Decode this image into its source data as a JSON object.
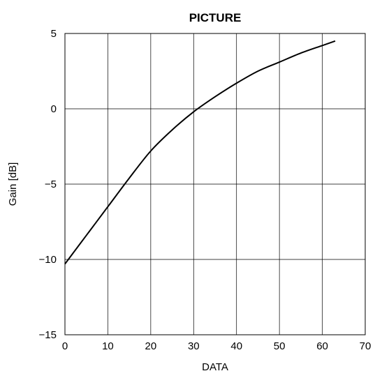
{
  "chart_data": {
    "type": "line",
    "title": "PICTURE",
    "xlabel": "DATA",
    "ylabel": "Gain [dB]",
    "xlim": [
      0,
      70
    ],
    "ylim": [
      -15,
      5
    ],
    "xticks": [
      0,
      10,
      20,
      30,
      40,
      50,
      60,
      70
    ],
    "yticks": [
      5,
      0,
      -5,
      -10,
      -15
    ],
    "ytick_labels": [
      "5",
      "0",
      "−5",
      "−10",
      "−15"
    ],
    "grid": true,
    "series": [
      {
        "color": "#000000",
        "x": [
          0,
          5,
          10,
          15,
          20,
          25,
          30,
          35,
          40,
          45,
          50,
          55,
          60,
          63
        ],
        "y": [
          -10.3,
          -8.4,
          -6.5,
          -4.6,
          -2.8,
          -1.4,
          -0.2,
          0.8,
          1.7,
          2.5,
          3.1,
          3.7,
          4.2,
          4.5
        ]
      }
    ]
  }
}
